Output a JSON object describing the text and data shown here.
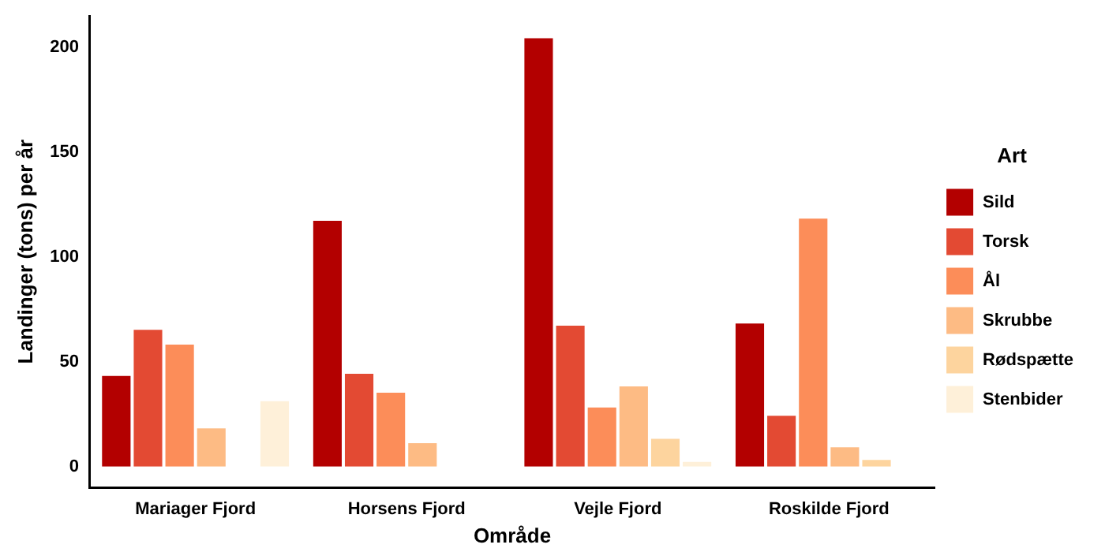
{
  "chart_data": {
    "type": "bar",
    "xlabel": "Område",
    "ylabel": "Landinger (tons) per år",
    "legend_title": "Art",
    "categories": [
      "Mariager Fjord",
      "Horsens Fjord",
      "Vejle Fjord",
      "Roskilde Fjord"
    ],
    "series": [
      {
        "name": "Sild",
        "color": "#b30000",
        "values": [
          44,
          118,
          205,
          69
        ]
      },
      {
        "name": "Torsk",
        "color": "#e34a33",
        "values": [
          66,
          45,
          68,
          25
        ]
      },
      {
        "name": "Ål",
        "color": "#fc8d59",
        "values": [
          59,
          36,
          29,
          119
        ]
      },
      {
        "name": "Skrubbe",
        "color": "#fdbb84",
        "values": [
          19,
          12,
          39,
          10
        ]
      },
      {
        "name": "Rødspætte",
        "color": "#fdd49e",
        "values": [
          null,
          null,
          14,
          4
        ]
      },
      {
        "name": "Stenbider",
        "color": "#fef0d9",
        "values": [
          32,
          null,
          3,
          null
        ]
      }
    ],
    "ylim": [
      -10,
      215
    ],
    "yticks": [
      0,
      50,
      100,
      150,
      200
    ],
    "grid": false,
    "legend": "right"
  }
}
